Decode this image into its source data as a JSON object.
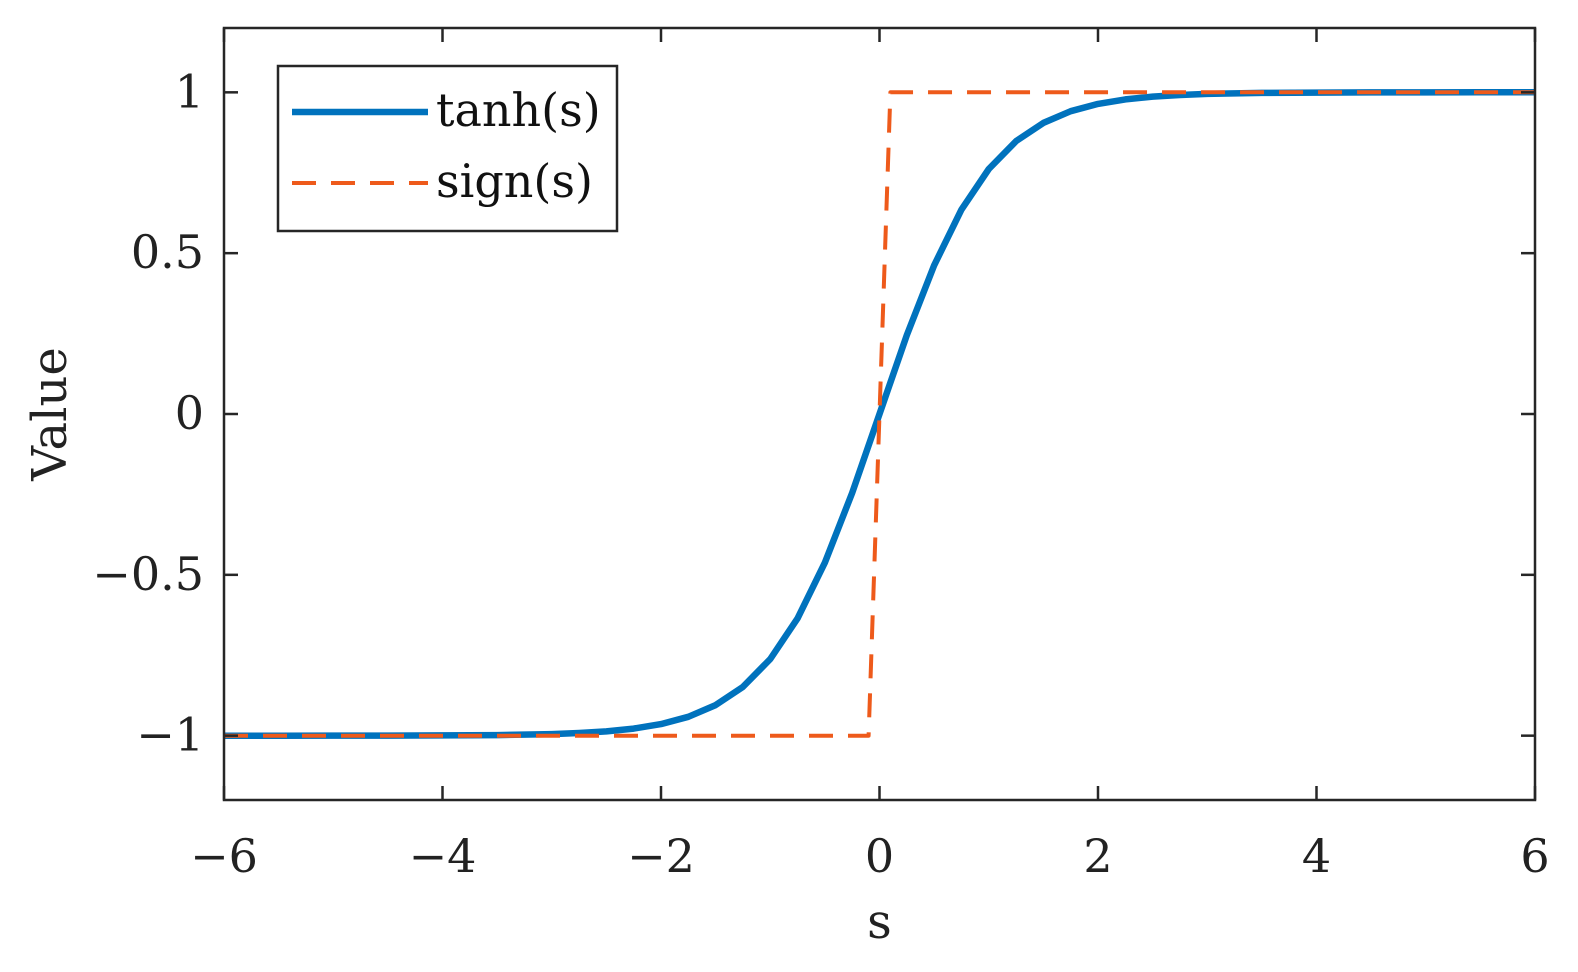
{
  "chart_data": {
    "type": "line",
    "title": "",
    "xlabel": "s",
    "ylabel": "Value",
    "xlim": [
      -6,
      6
    ],
    "ylim": [
      -1.2,
      1.2
    ],
    "xticks": [
      -6,
      -4,
      -2,
      0,
      2,
      4,
      6
    ],
    "xtick_labels": [
      "−6",
      "−4",
      "−2",
      "0",
      "2",
      "4",
      "6"
    ],
    "yticks": [
      -1,
      -0.5,
      0,
      0.5,
      1
    ],
    "ytick_labels": [
      "−1",
      "−0.5",
      "0",
      "0.5",
      "1"
    ],
    "grid": false,
    "legend": {
      "position": "top-left"
    },
    "series": [
      {
        "name": "tanh(s)",
        "color": "#0072BD",
        "style": "solid",
        "x": [
          -6,
          -5.5,
          -5,
          -4.5,
          -4,
          -3.5,
          -3,
          -2.75,
          -2.5,
          -2.25,
          -2,
          -1.75,
          -1.5,
          -1.25,
          -1,
          -0.75,
          -0.5,
          -0.25,
          0,
          0.25,
          0.5,
          0.75,
          1,
          1.25,
          1.5,
          1.75,
          2,
          2.25,
          2.5,
          2.75,
          3,
          3.5,
          4,
          4.5,
          5,
          5.5,
          6
        ],
        "y": [
          -1.0,
          -1.0,
          -0.9999,
          -0.9998,
          -0.9993,
          -0.9982,
          -0.9951,
          -0.9918,
          -0.9866,
          -0.978,
          -0.964,
          -0.9414,
          -0.9051,
          -0.8483,
          -0.7616,
          -0.6351,
          -0.4621,
          -0.2449,
          0.0,
          0.2449,
          0.4621,
          0.6351,
          0.7616,
          0.8483,
          0.9051,
          0.9414,
          0.964,
          0.978,
          0.9866,
          0.9918,
          0.9951,
          0.9982,
          0.9993,
          0.9998,
          0.9999,
          1.0,
          1.0
        ]
      },
      {
        "name": "sign(s)",
        "color": "#EE5A1B",
        "style": "dashed",
        "x": [
          -6,
          -0.1,
          0.1,
          6
        ],
        "y": [
          -1,
          -1,
          1,
          1
        ]
      }
    ]
  }
}
